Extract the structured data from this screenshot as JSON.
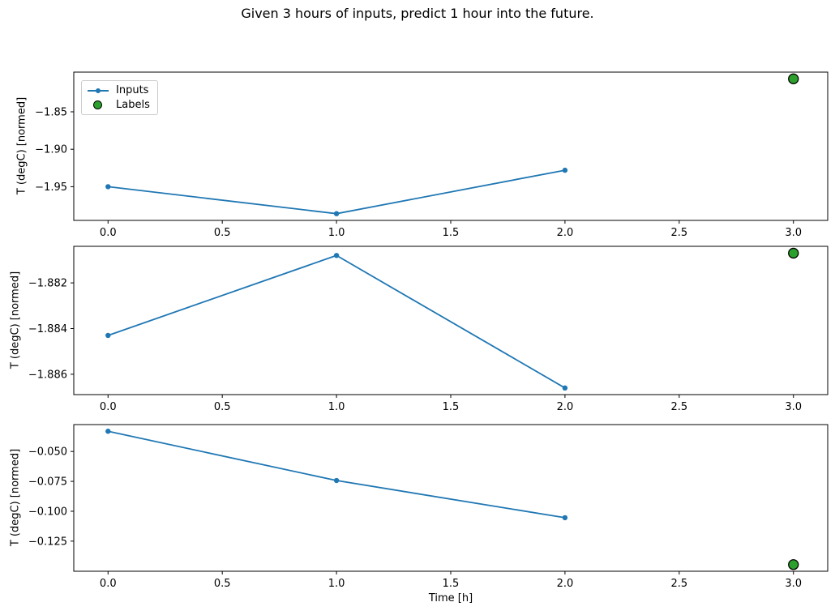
{
  "title": "Given 3 hours of inputs, predict 1 hour into the future.",
  "xlabel": "Time [h]",
  "legend": {
    "position": "upper left of subplot 1",
    "items": [
      {
        "label": "Inputs",
        "marker": "line-with-dot",
        "color": "#1f77b4"
      },
      {
        "label": "Labels",
        "marker": "filled-circle",
        "fill": "#2ca02c",
        "edge": "#000000"
      }
    ]
  },
  "colors": {
    "inputs_line": "#1f77b4",
    "labels_fill": "#2ca02c",
    "labels_edge": "#000000",
    "spine": "#000000",
    "tick_text": "#000000"
  },
  "chart_data": [
    {
      "type": "line",
      "ylabel": "T (degC) [normed]",
      "x": [
        0,
        1,
        2
      ],
      "series": [
        {
          "name": "Inputs",
          "values": [
            -1.95,
            -1.986,
            -1.928
          ]
        }
      ],
      "label_point": {
        "name": "Labels",
        "x": 3,
        "y": -1.806
      },
      "xlim": [
        -0.15,
        3.15
      ],
      "ylim": [
        -1.995,
        -1.797
      ],
      "grid": false,
      "xticks": [
        {
          "v": 0.0,
          "label": "0.0"
        },
        {
          "v": 0.5,
          "label": "0.5"
        },
        {
          "v": 1.0,
          "label": "1.0"
        },
        {
          "v": 1.5,
          "label": "1.5"
        },
        {
          "v": 2.0,
          "label": "2.0"
        },
        {
          "v": 2.5,
          "label": "2.5"
        },
        {
          "v": 3.0,
          "label": "3.0"
        }
      ],
      "yticks": [
        {
          "v": -1.85,
          "label": "−1.85"
        },
        {
          "v": -1.9,
          "label": "−1.90"
        },
        {
          "v": -1.95,
          "label": "−1.95"
        }
      ]
    },
    {
      "type": "line",
      "ylabel": "T (degC) [normed]",
      "x": [
        0,
        1,
        2
      ],
      "series": [
        {
          "name": "Inputs",
          "values": [
            -1.8843,
            -1.8808,
            -1.8866
          ]
        }
      ],
      "label_point": {
        "name": "Labels",
        "x": 3,
        "y": -1.8807
      },
      "xlim": [
        -0.15,
        3.15
      ],
      "ylim": [
        -1.88689,
        -1.8804
      ],
      "grid": false,
      "xticks": [
        {
          "v": 0.0,
          "label": "0.0"
        },
        {
          "v": 0.5,
          "label": "0.5"
        },
        {
          "v": 1.0,
          "label": "1.0"
        },
        {
          "v": 1.5,
          "label": "1.5"
        },
        {
          "v": 2.0,
          "label": "2.0"
        },
        {
          "v": 2.5,
          "label": "2.5"
        },
        {
          "v": 3.0,
          "label": "3.0"
        }
      ],
      "yticks": [
        {
          "v": -1.882,
          "label": "−1.882"
        },
        {
          "v": -1.884,
          "label": "−1.884"
        },
        {
          "v": -1.886,
          "label": "−1.886"
        }
      ]
    },
    {
      "type": "line",
      "ylabel": "T (degC) [normed]",
      "x": [
        0,
        1,
        2
      ],
      "series": [
        {
          "name": "Inputs",
          "values": [
            -0.0331,
            -0.0743,
            -0.1054
          ]
        }
      ],
      "label_point": {
        "name": "Labels",
        "x": 3,
        "y": -0.1446
      },
      "xlim": [
        -0.15,
        3.15
      ],
      "ylim": [
        -0.15018,
        -0.02752
      ],
      "grid": false,
      "xticks": [
        {
          "v": 0.0,
          "label": "0.0"
        },
        {
          "v": 0.5,
          "label": "0.5"
        },
        {
          "v": 1.0,
          "label": "1.0"
        },
        {
          "v": 1.5,
          "label": "1.5"
        },
        {
          "v": 2.0,
          "label": "2.0"
        },
        {
          "v": 2.5,
          "label": "2.5"
        },
        {
          "v": 3.0,
          "label": "3.0"
        }
      ],
      "yticks": [
        {
          "v": -0.05,
          "label": "−0.050"
        },
        {
          "v": -0.075,
          "label": "−0.075"
        },
        {
          "v": -0.1,
          "label": "−0.100"
        },
        {
          "v": -0.125,
          "label": "−0.125"
        }
      ]
    }
  ]
}
